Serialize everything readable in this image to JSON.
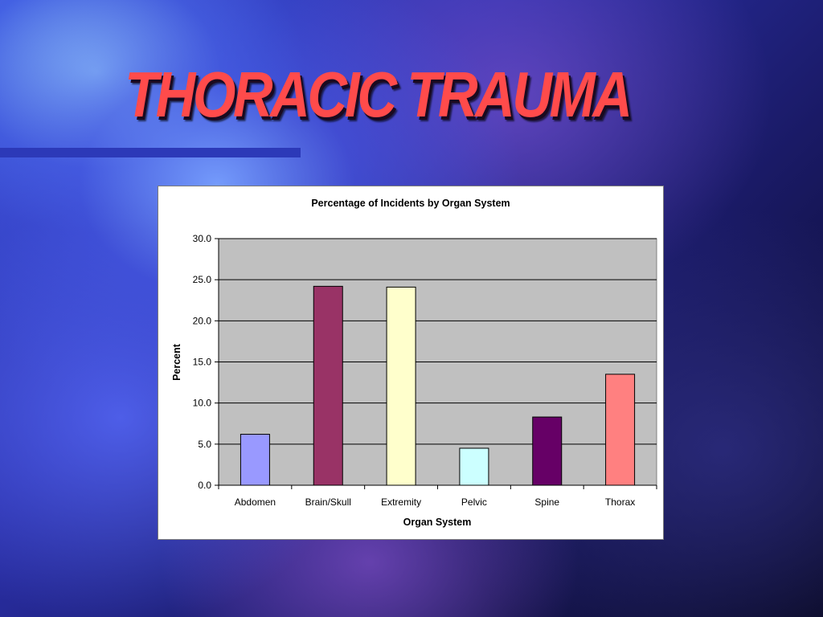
{
  "slide": {
    "title": "THORACIC TRAUMA"
  },
  "colors": {
    "title": "#ff4b4b",
    "plot_area": "#c0c0c0"
  },
  "chart_data": {
    "type": "bar",
    "title": "Percentage of Incidents by Organ System",
    "xlabel": "Organ System",
    "ylabel": "Percent",
    "categories": [
      "Abdomen",
      "Brain/Skull",
      "Extremity",
      "Pelvic",
      "Spine",
      "Thorax"
    ],
    "values": [
      6.2,
      24.2,
      24.1,
      4.5,
      8.3,
      13.5
    ],
    "bar_colors": [
      "#9999ff",
      "#993366",
      "#ffffcc",
      "#ccffff",
      "#660066",
      "#ff8080"
    ],
    "ylim": [
      0,
      30
    ],
    "yticks": [
      "0.0",
      "5.0",
      "10.0",
      "15.0",
      "20.0",
      "25.0",
      "30.0"
    ],
    "grid": true,
    "legend": "none"
  }
}
